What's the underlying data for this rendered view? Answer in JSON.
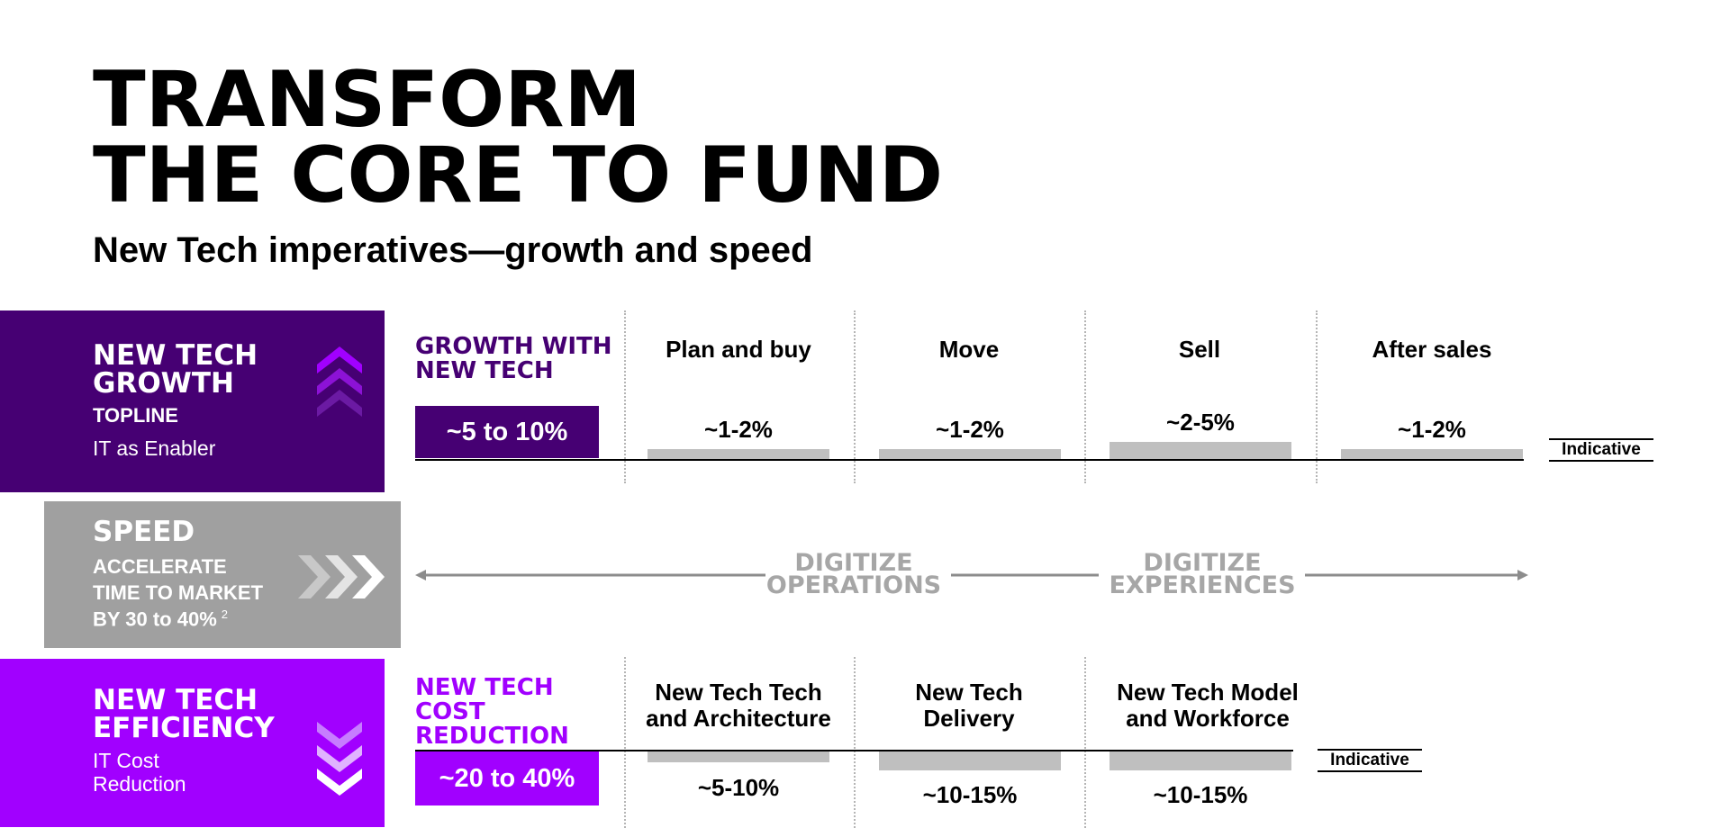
{
  "title": {
    "line1": "TRANSFORM",
    "line2": "THE CORE TO FUND"
  },
  "subtitle": "New Tech imperatives—growth and speed",
  "colors": {
    "dark_purple": "#460073",
    "bright_purple": "#a100ff",
    "gray_block": "#a0a0a0",
    "bar_gray": "#bfbfbf",
    "arrow_gray": "#8c8c8c"
  },
  "growth_block": {
    "heading_line1": "NEW TECH",
    "heading_line2": "GROWTH",
    "sub_bold": "TOPLINE",
    "sub": "IT as Enabler",
    "icon": "chevrons-up-icon"
  },
  "speed_block": {
    "heading": "SPEED",
    "line1": "ACCELERATE",
    "line2": "TIME TO MARKET",
    "line3": "BY  30 to 40%",
    "footnote": "2",
    "icon": "chevrons-right-icon"
  },
  "efficiency_block": {
    "heading_line1": "NEW TECH",
    "heading_line2": "EFFICIENCY",
    "sub_line1": "IT Cost",
    "sub_line2": "Reduction",
    "icon": "chevrons-down-icon"
  },
  "growth_section": {
    "heading_line1": "GROWTH WITH",
    "heading_line2": "NEW TECH",
    "total": "~5 to 10%",
    "columns": [
      {
        "label": "Plan and buy",
        "value": "~1-2%"
      },
      {
        "label": "Move",
        "value": "~1-2%"
      },
      {
        "label": "Sell",
        "value": "~2-5%"
      },
      {
        "label": "After sales",
        "value": "~1-2%"
      }
    ],
    "indicative": "Indicative"
  },
  "speed_section": {
    "left": {
      "line1": "DIGITIZE",
      "line2": "OPERATIONS"
    },
    "right": {
      "line1": "DIGITIZE",
      "line2": "EXPERIENCES"
    }
  },
  "cost_section": {
    "heading_line1": "NEW TECH",
    "heading_line2": "COST",
    "heading_line3": "REDUCTION",
    "total": "~20 to 40%",
    "columns": [
      {
        "label_line1": "New Tech Tech",
        "label_line2": "and Architecture",
        "value": "~5-10%"
      },
      {
        "label_line1": "New Tech",
        "label_line2": "Delivery",
        "value": "~10-15%"
      },
      {
        "label_line1": "New Tech Model",
        "label_line2": "and Workforce",
        "value": "~10-15%"
      }
    ],
    "indicative": "Indicative"
  }
}
